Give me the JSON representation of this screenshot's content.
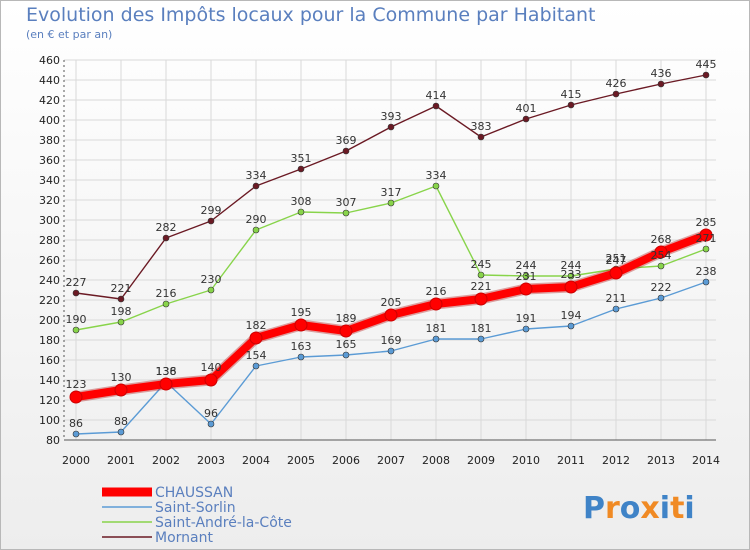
{
  "chart_data": {
    "type": "line",
    "title": "Evolution des Impôts locaux pour la Commune par Habitant",
    "subtitle": "(en € et par an)",
    "xlabel": "",
    "ylabel": "",
    "x": [
      "2000",
      "2001",
      "2002",
      "2003",
      "2004",
      "2005",
      "2006",
      "2007",
      "2008",
      "2009",
      "2010",
      "2011",
      "2012",
      "2013",
      "2014"
    ],
    "ylim": [
      80,
      460
    ],
    "yticks": [
      80,
      100,
      120,
      140,
      160,
      180,
      200,
      220,
      240,
      260,
      280,
      300,
      320,
      340,
      360,
      380,
      400,
      420,
      440,
      460
    ],
    "grid": true,
    "legend_position": "bottom-left",
    "series": [
      {
        "name": "Mornant",
        "color": "#6b1a24",
        "values": [
          227,
          221,
          282,
          299,
          334,
          351,
          369,
          393,
          414,
          383,
          401,
          415,
          426,
          436,
          445
        ]
      },
      {
        "name": "Saint-André-la-Côte",
        "color": "#88d44a",
        "values": [
          190,
          198,
          216,
          230,
          290,
          308,
          307,
          317,
          334,
          245,
          244,
          244,
          251,
          254,
          271
        ]
      },
      {
        "name": "Saint-Sorlin",
        "color": "#5b9bd5",
        "values": [
          86,
          88,
          138,
          96,
          154,
          163,
          165,
          169,
          181,
          181,
          191,
          194,
          211,
          222,
          238
        ]
      },
      {
        "name": "CHAUSSAN",
        "color": "#ff0000",
        "values": [
          123,
          130,
          136,
          140,
          182,
          195,
          189,
          205,
          216,
          221,
          231,
          233,
          247,
          268,
          285
        ]
      }
    ],
    "legend": [
      "CHAUSSAN",
      "Saint-Sorlin",
      "Saint-André-la-Côte",
      "Mornant"
    ],
    "logo": "Proxiti"
  }
}
